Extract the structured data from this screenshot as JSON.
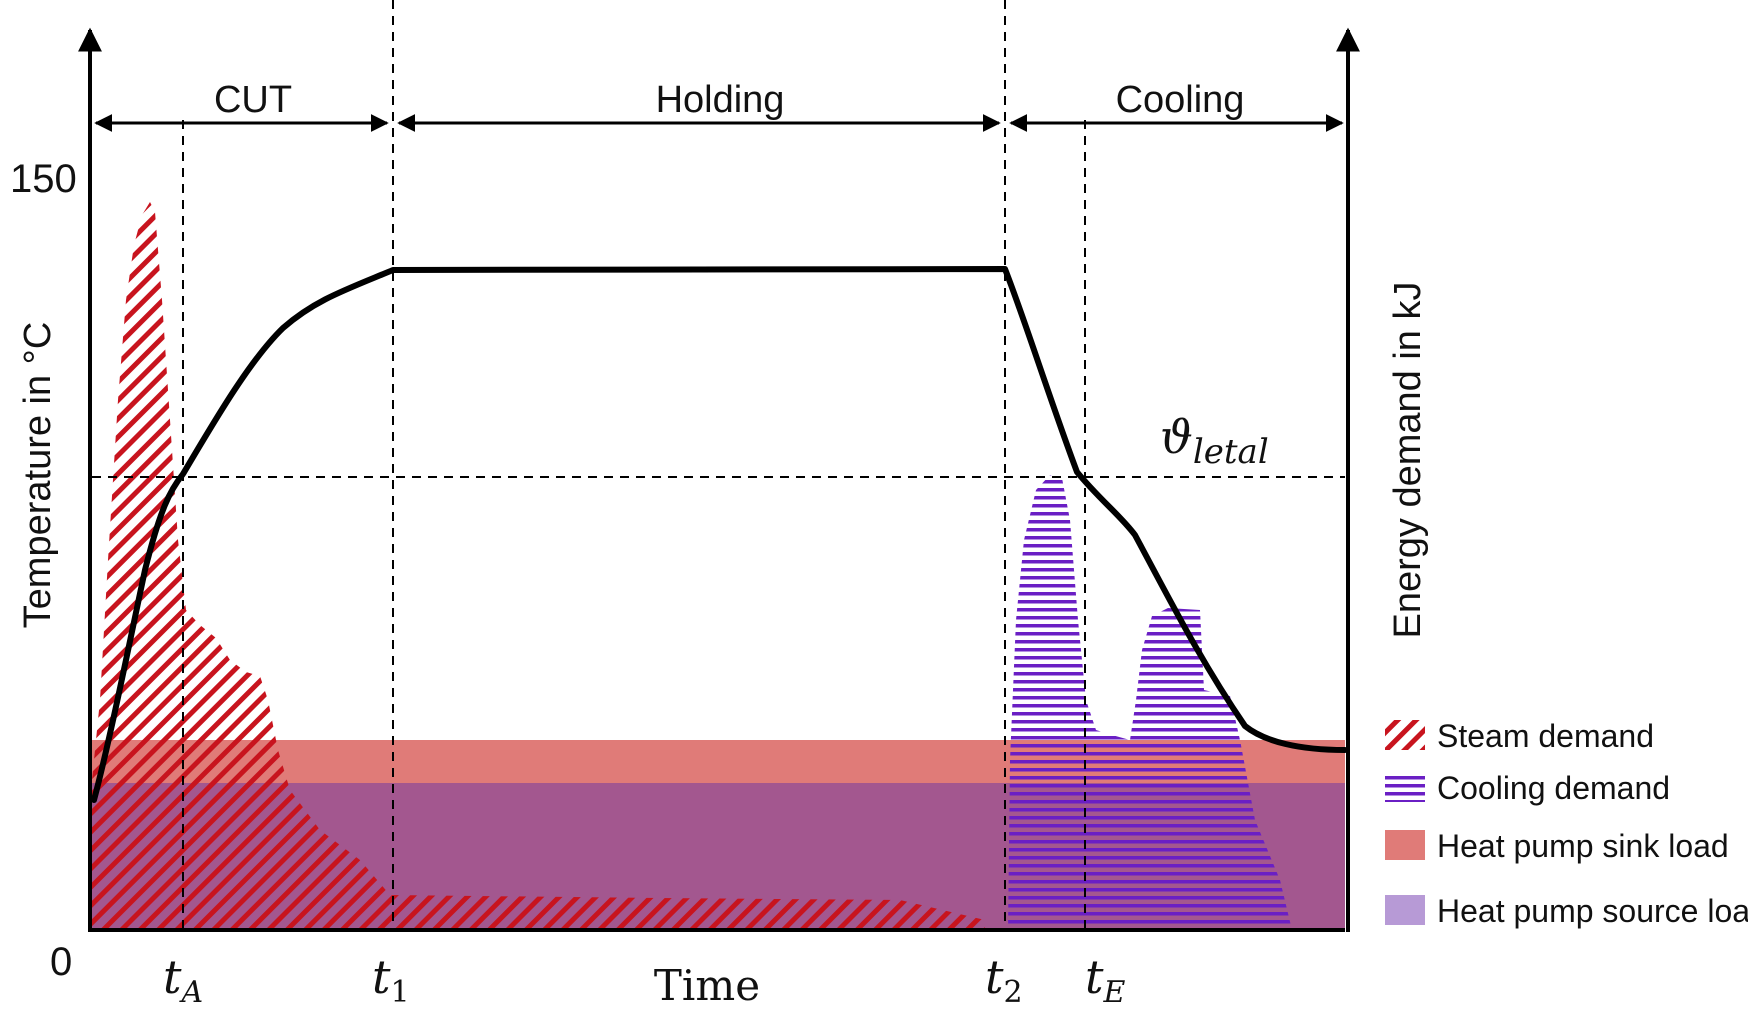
{
  "axes": {
    "y_left_label": "Temperature in °C",
    "y_right_label": "Energy demand in kJ",
    "x_label": "Time",
    "y_max_tick": "150",
    "origin_tick": "0"
  },
  "phases": [
    {
      "label": "CUT"
    },
    {
      "label": "Holding"
    },
    {
      "label": "Cooling"
    }
  ],
  "time_markers": [
    {
      "base": "t",
      "sub": "A"
    },
    {
      "base": "t",
      "sub": "1"
    },
    {
      "base": "t",
      "sub": "2"
    },
    {
      "base": "t",
      "sub": "E"
    }
  ],
  "lethal_label": {
    "base": "ϑ",
    "sub": "letal"
  },
  "legend": [
    {
      "label": "Steam demand",
      "style": "red-diagonal-hatch",
      "color": "#c8141e"
    },
    {
      "label": "Cooling demand",
      "style": "purple-horizontal-hatch",
      "color": "#6a1fc4"
    },
    {
      "label": "Heat pump  sink load",
      "style": "solid",
      "color": "#e07b78"
    },
    {
      "label": "Heat pump  source load",
      "style": "solid",
      "color": "#b79ad6"
    }
  ],
  "colors": {
    "steam": "#c8141e",
    "cooling": "#6a1fc4",
    "sink_band": "#e07b78",
    "source_band": "#a3578f",
    "curve": "#000000"
  }
}
